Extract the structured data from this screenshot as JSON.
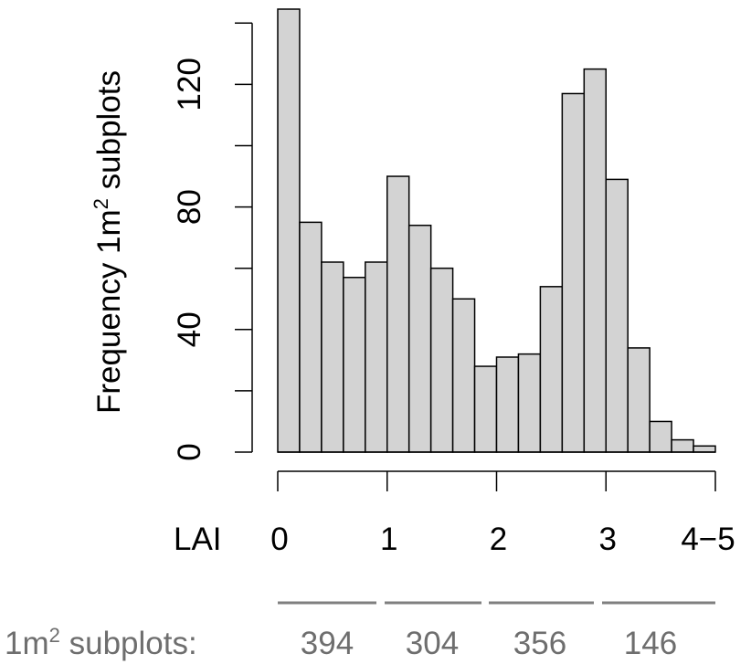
{
  "chart_data": {
    "type": "bar",
    "ylabel_prefix": "Frequency 1m",
    "ylabel_sup": "2",
    "ylabel_suffix": " subplots",
    "ylim": [
      0,
      145
    ],
    "yticks": [
      "0",
      "40",
      "80",
      "120"
    ],
    "xlabel": "LAI",
    "xticks": [
      "0",
      "1",
      "2",
      "3",
      "4−5"
    ],
    "bin_width": 0.2,
    "bin_starts": [
      0.0,
      0.2,
      0.4,
      0.6,
      0.8,
      1.0,
      1.2,
      1.4,
      1.6,
      1.8,
      2.0,
      2.2,
      2.4,
      2.6,
      2.8,
      3.0,
      3.2,
      3.4,
      3.6,
      3.8
    ],
    "values": [
      145,
      75,
      62,
      57,
      62,
      90,
      74,
      60,
      50,
      28,
      31,
      32,
      54,
      117,
      125,
      89,
      34,
      10,
      4,
      2
    ],
    "bar_color": "#d3d3d3",
    "subplot_summary": {
      "label_prefix": "1m",
      "label_sup": "2",
      "label_suffix": " subplots:",
      "groups": [
        "394",
        "304",
        "356",
        "146"
      ]
    }
  }
}
